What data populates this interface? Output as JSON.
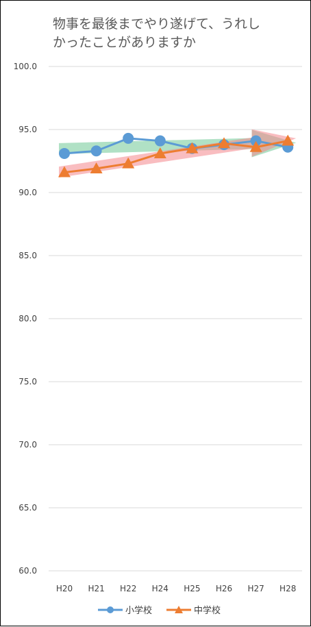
{
  "chart_data": {
    "type": "line",
    "title_lines": [
      "物事を最後までやり遂げて、うれし",
      "かったことがありますか"
    ],
    "categories": [
      "H20",
      "H21",
      "H22",
      "H24",
      "H25",
      "H26",
      "H27",
      "H28"
    ],
    "y_tick_labels": [
      "100.0",
      "95.0",
      "90.0",
      "85.0",
      "80.0",
      "75.0",
      "70.0",
      "65.0",
      "60.0"
    ],
    "ylim": [
      60,
      100
    ],
    "grid": true,
    "legend_position": "bottom",
    "series": [
      {
        "name": "小学校",
        "color": "#5B9BD5",
        "marker": "circle",
        "values": [
          93.1,
          93.3,
          94.3,
          94.1,
          93.5,
          93.8,
          94.1,
          93.6
        ]
      },
      {
        "name": "中学校",
        "color": "#ED7D31",
        "marker": "triangle",
        "values": [
          91.6,
          91.9,
          92.3,
          93.1,
          93.5,
          93.9,
          93.6,
          94.1
        ]
      }
    ],
    "trend_arrows": [
      {
        "series": "小学校",
        "color": "#70C995"
      },
      {
        "series": "中学校",
        "color": "#F4868C"
      }
    ]
  }
}
